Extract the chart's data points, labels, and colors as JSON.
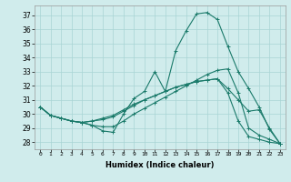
{
  "xlabel": "Humidex (Indice chaleur)",
  "ylabel": "",
  "bg_color": "#d0ecec",
  "grid_color": "#a8d4d4",
  "line_color": "#1a7a6a",
  "xlim": [
    -0.5,
    23.5
  ],
  "ylim": [
    27.5,
    37.7
  ],
  "yticks": [
    28,
    29,
    30,
    31,
    32,
    33,
    34,
    35,
    36,
    37
  ],
  "xticks": [
    0,
    1,
    2,
    3,
    4,
    5,
    6,
    7,
    8,
    9,
    10,
    11,
    12,
    13,
    14,
    15,
    16,
    17,
    18,
    19,
    20,
    21,
    22,
    23
  ],
  "series": [
    [
      30.5,
      29.9,
      29.7,
      29.5,
      29.4,
      29.2,
      28.8,
      28.7,
      30.0,
      31.1,
      31.6,
      33.0,
      31.6,
      34.5,
      35.9,
      37.1,
      37.2,
      36.7,
      34.8,
      33.0,
      31.8,
      30.5,
      28.9,
      27.9
    ],
    [
      30.5,
      29.9,
      29.7,
      29.5,
      29.4,
      29.2,
      29.1,
      29.1,
      29.5,
      30.0,
      30.4,
      30.8,
      31.2,
      31.6,
      32.0,
      32.4,
      32.8,
      33.1,
      33.2,
      31.5,
      29.0,
      28.5,
      28.2,
      27.9
    ],
    [
      30.5,
      29.9,
      29.7,
      29.5,
      29.4,
      29.5,
      29.6,
      29.8,
      30.2,
      30.6,
      31.0,
      31.3,
      31.6,
      31.9,
      32.1,
      32.3,
      32.4,
      32.5,
      31.8,
      31.0,
      30.2,
      30.3,
      29.0,
      27.9
    ],
    [
      30.5,
      29.9,
      29.7,
      29.5,
      29.4,
      29.5,
      29.7,
      29.9,
      30.3,
      30.7,
      31.0,
      31.3,
      31.6,
      31.9,
      32.1,
      32.3,
      32.4,
      32.5,
      31.5,
      29.5,
      28.4,
      28.2,
      28.0,
      27.9
    ]
  ],
  "xlabel_fontsize": 6.0,
  "xtick_fontsize": 4.5,
  "ytick_fontsize": 5.5
}
